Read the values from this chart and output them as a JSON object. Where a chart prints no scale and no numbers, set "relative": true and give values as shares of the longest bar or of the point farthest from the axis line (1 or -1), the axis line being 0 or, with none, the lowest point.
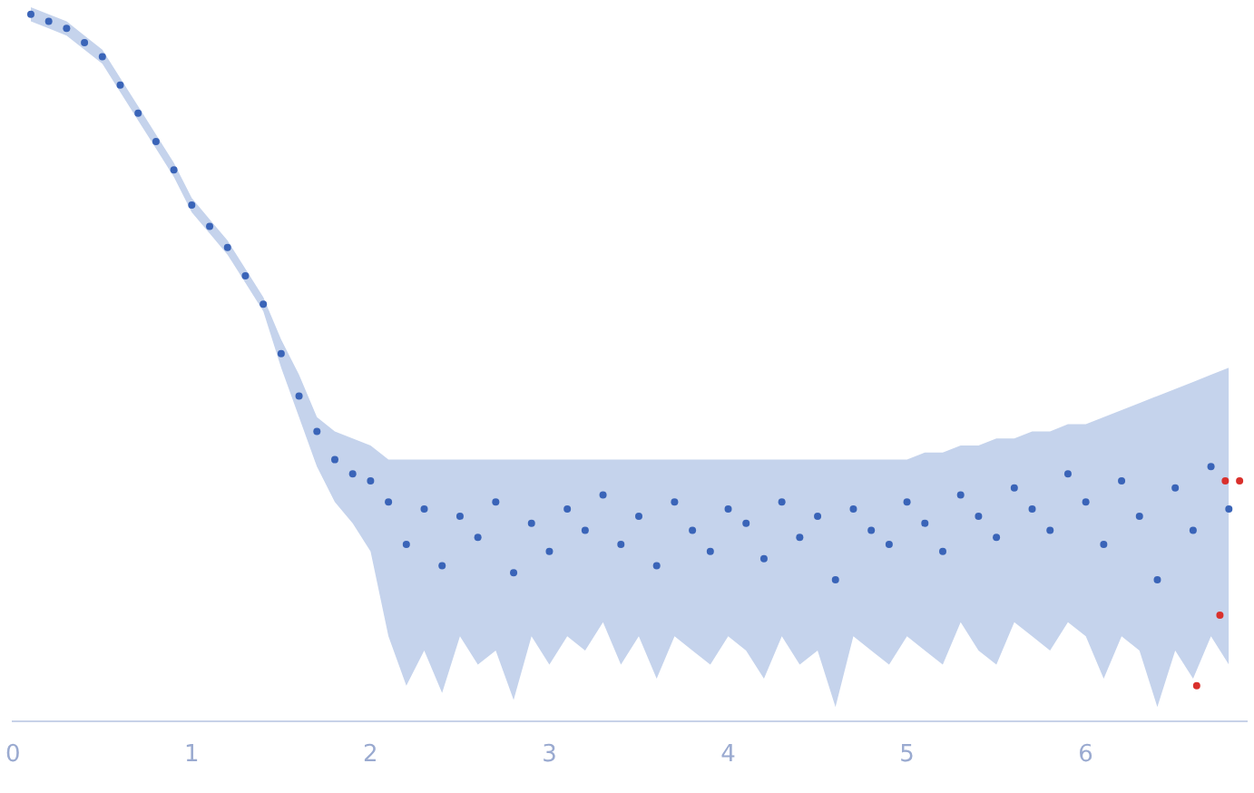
{
  "chart_data": {
    "type": "scatter",
    "relative": true,
    "xlim": [
      0,
      6.9
    ],
    "xticks": [
      0,
      1,
      2,
      3,
      4,
      5,
      6
    ],
    "grid": false,
    "legend": false,
    "marker": "circle",
    "x": [
      0.1,
      0.2,
      0.3,
      0.4,
      0.5,
      0.6,
      0.7,
      0.8,
      0.9,
      1.0,
      1.1,
      1.2,
      1.3,
      1.4,
      1.5,
      1.6,
      1.7,
      1.8,
      1.9,
      2.0,
      2.1,
      2.2,
      2.3,
      2.4,
      2.5,
      2.6,
      2.7,
      2.8,
      2.9,
      3.0,
      3.1,
      3.2,
      3.3,
      3.4,
      3.5,
      3.6,
      3.7,
      3.8,
      3.9,
      4.0,
      4.1,
      4.2,
      4.3,
      4.4,
      4.5,
      4.6,
      4.7,
      4.8,
      4.9,
      5.0,
      5.1,
      5.2,
      5.3,
      5.4,
      5.5,
      5.6,
      5.7,
      5.8,
      5.9,
      6.0,
      6.1,
      6.2,
      6.3,
      6.4,
      6.5,
      6.6,
      6.7,
      6.8
    ],
    "series": [
      {
        "color": "#3a64b8",
        "values": [
          1.0,
          0.99,
          0.98,
          0.96,
          0.94,
          0.9,
          0.86,
          0.82,
          0.78,
          0.73,
          0.7,
          0.67,
          0.63,
          0.59,
          0.52,
          0.46,
          0.41,
          0.37,
          0.35,
          0.34,
          0.31,
          0.25,
          0.3,
          0.22,
          0.29,
          0.26,
          0.31,
          0.21,
          0.28,
          0.24,
          0.3,
          0.27,
          0.32,
          0.25,
          0.29,
          0.22,
          0.31,
          0.27,
          0.24,
          0.3,
          0.28,
          0.23,
          0.31,
          0.26,
          0.29,
          0.2,
          0.3,
          0.27,
          0.25,
          0.31,
          0.28,
          0.24,
          0.32,
          0.29,
          0.26,
          0.33,
          0.3,
          0.27,
          0.35,
          0.31,
          0.25,
          0.34,
          0.29,
          0.2,
          0.33,
          0.27,
          0.36,
          0.3
        ],
        "lower": [
          0.99,
          0.98,
          0.97,
          0.95,
          0.93,
          0.89,
          0.85,
          0.81,
          0.77,
          0.72,
          0.69,
          0.66,
          0.62,
          0.58,
          0.5,
          0.43,
          0.36,
          0.31,
          0.28,
          0.24,
          0.12,
          0.05,
          0.1,
          0.04,
          0.12,
          0.08,
          0.1,
          0.03,
          0.12,
          0.08,
          0.12,
          0.1,
          0.14,
          0.08,
          0.12,
          0.06,
          0.12,
          0.1,
          0.08,
          0.12,
          0.1,
          0.06,
          0.12,
          0.08,
          0.1,
          0.02,
          0.12,
          0.1,
          0.08,
          0.12,
          0.1,
          0.08,
          0.14,
          0.1,
          0.08,
          0.14,
          0.12,
          0.1,
          0.14,
          0.12,
          0.06,
          0.12,
          0.1,
          0.02,
          0.1,
          0.06,
          0.12,
          0.08
        ],
        "upper": [
          1.01,
          1.0,
          0.99,
          0.97,
          0.95,
          0.91,
          0.87,
          0.83,
          0.79,
          0.74,
          0.71,
          0.68,
          0.64,
          0.6,
          0.54,
          0.49,
          0.43,
          0.41,
          0.4,
          0.39,
          0.37,
          0.37,
          0.37,
          0.37,
          0.37,
          0.37,
          0.37,
          0.37,
          0.37,
          0.37,
          0.37,
          0.37,
          0.37,
          0.37,
          0.37,
          0.37,
          0.37,
          0.37,
          0.37,
          0.37,
          0.37,
          0.37,
          0.37,
          0.37,
          0.37,
          0.37,
          0.37,
          0.37,
          0.37,
          0.37,
          0.38,
          0.38,
          0.39,
          0.39,
          0.4,
          0.4,
          0.41,
          0.41,
          0.42,
          0.42,
          0.43,
          0.44,
          0.45,
          0.46,
          0.47,
          0.48,
          0.49,
          0.5
        ]
      },
      {
        "color": "#d9302c",
        "x": [
          6.62,
          6.75,
          6.78,
          6.86
        ],
        "values": [
          0.05,
          0.15,
          0.34,
          0.34
        ]
      }
    ]
  }
}
